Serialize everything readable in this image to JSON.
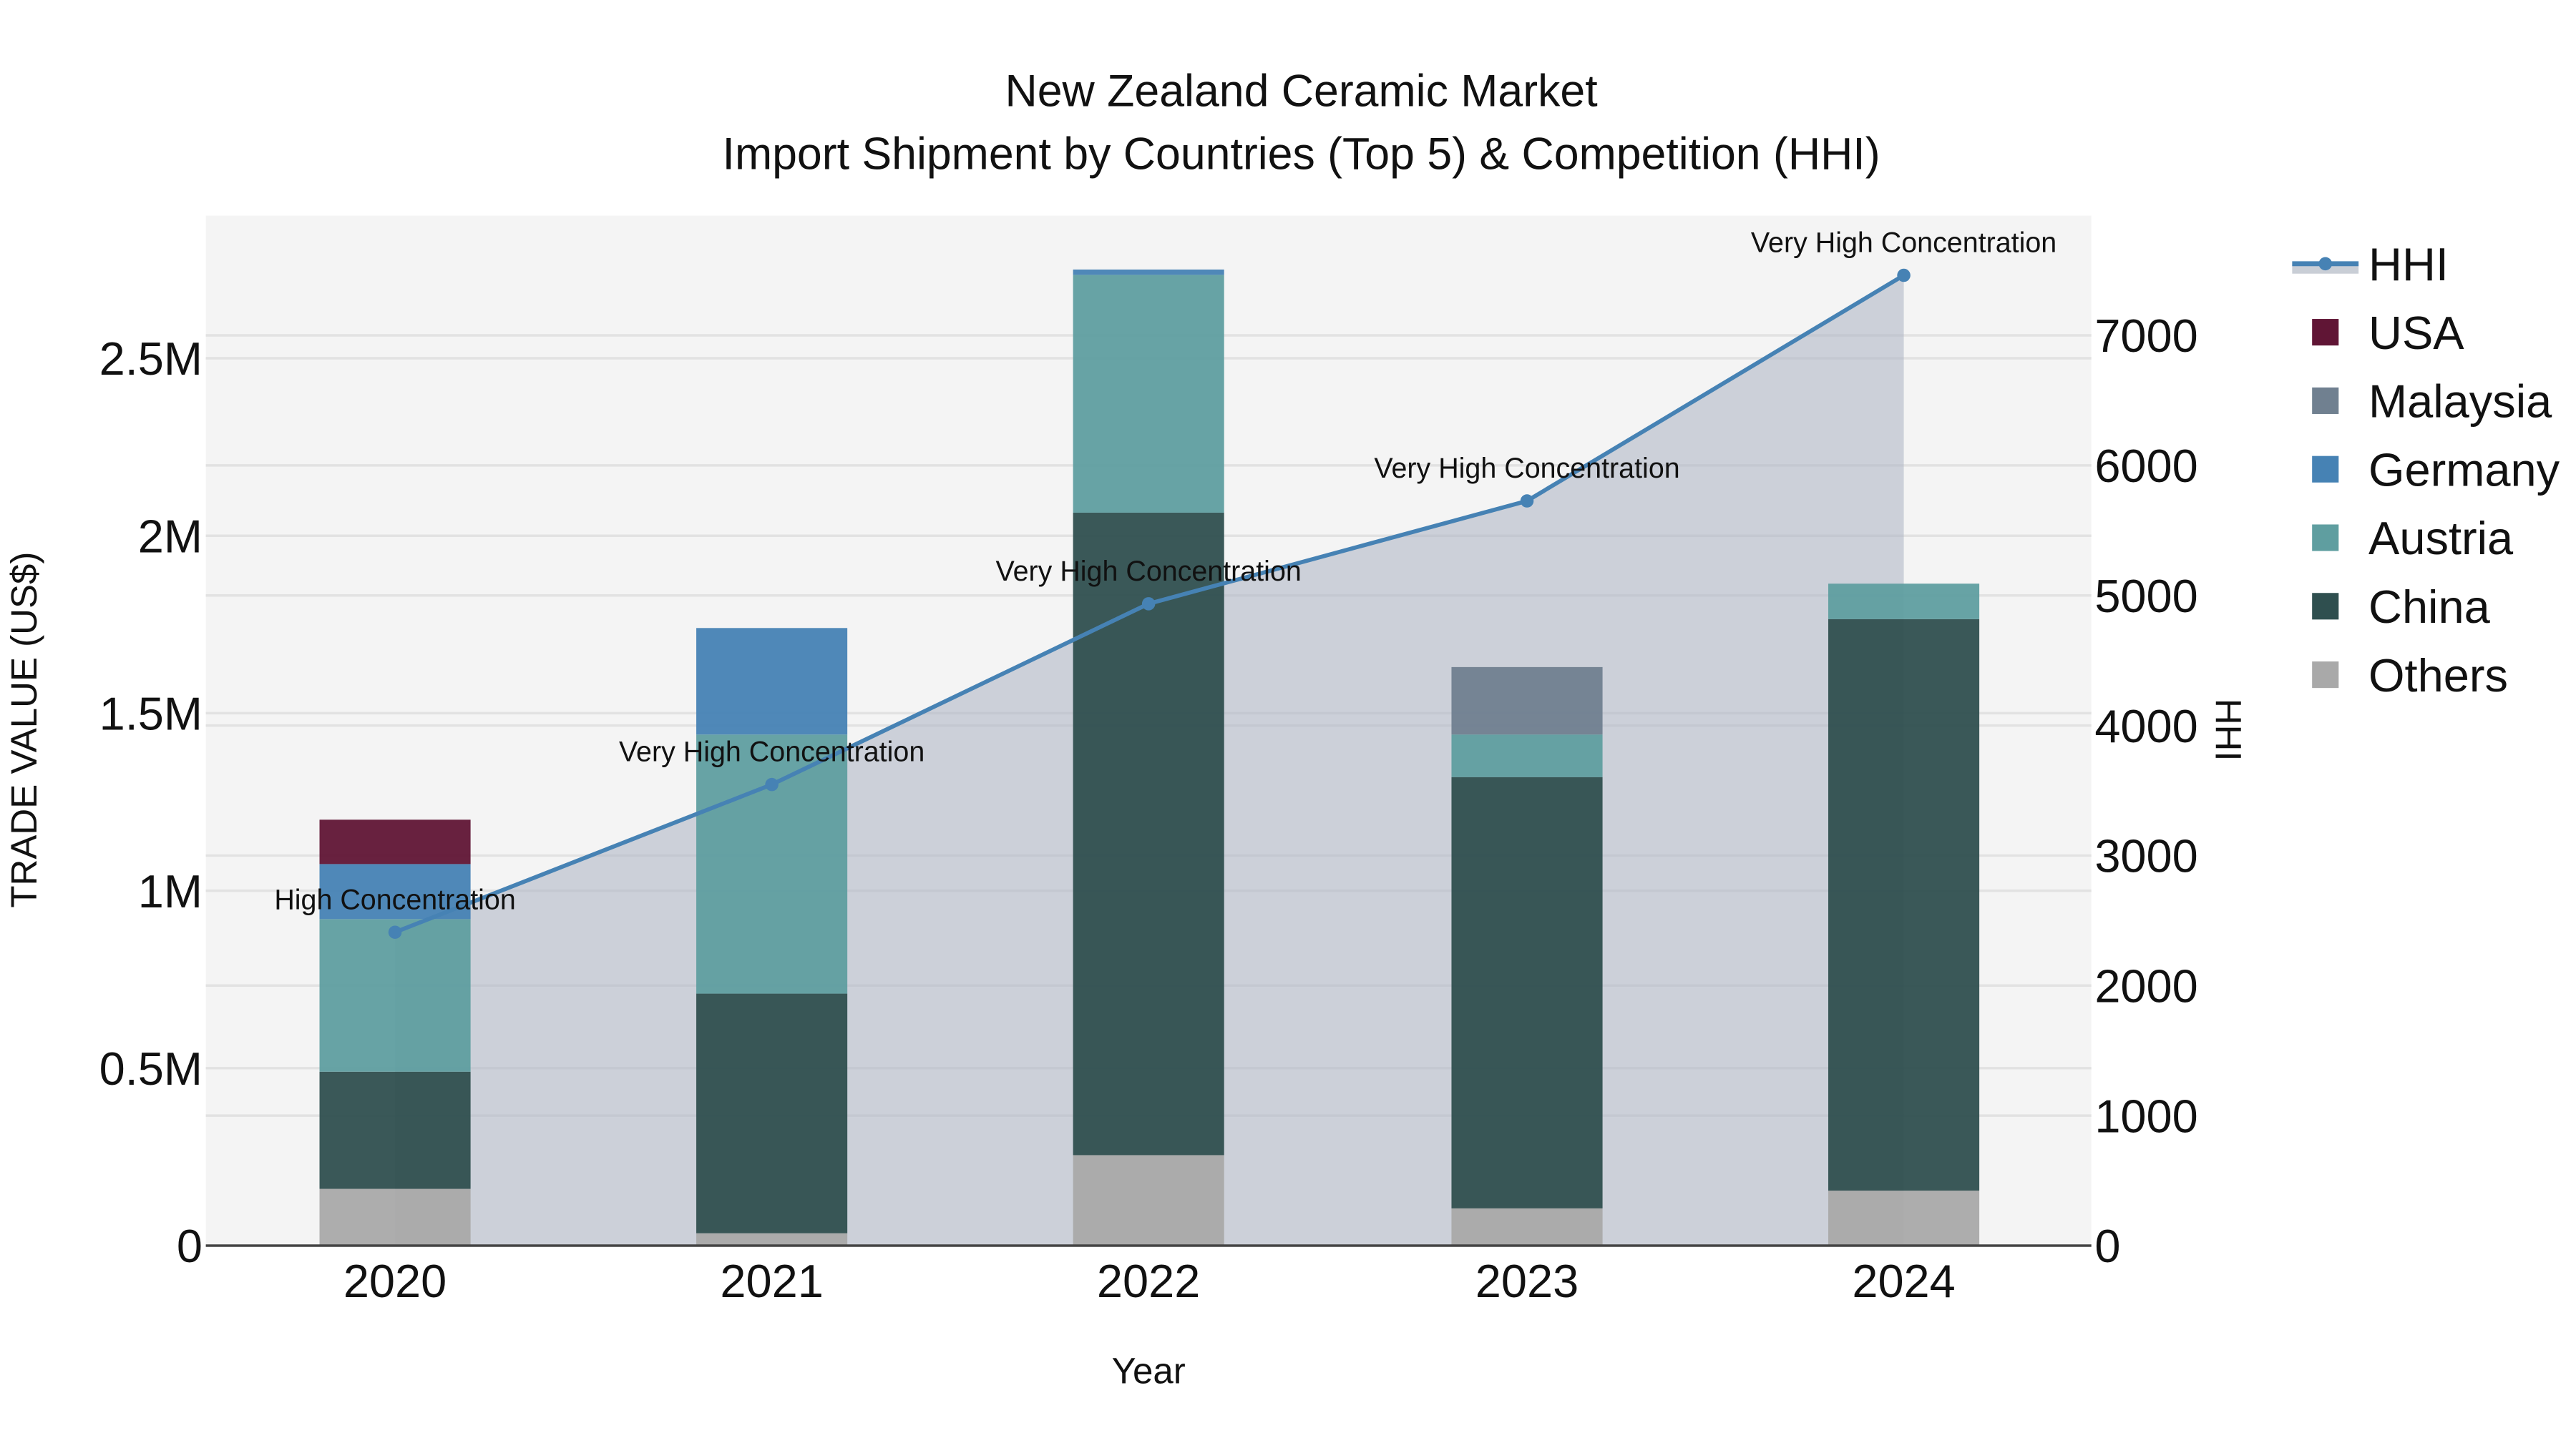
{
  "chart_data": {
    "type": "bar",
    "stacked": true,
    "title": "New Zealand Ceramic Market",
    "subtitle": "Import Shipment by Countries (Top 5) & Competition (HHI)",
    "xlabel": "Year",
    "ylabel": "TRADE VALUE (US$)",
    "y2label": "HHI",
    "categories": [
      "2020",
      "2021",
      "2022",
      "2023",
      "2024"
    ],
    "ylim": [
      0,
      2900000
    ],
    "y2lim": [
      0,
      7900
    ],
    "yticks": [
      {
        "v": 0,
        "label": "0"
      },
      {
        "v": 500000,
        "label": "0.5M"
      },
      {
        "v": 1000000,
        "label": "1M"
      },
      {
        "v": 1500000,
        "label": "1.5M"
      },
      {
        "v": 2000000,
        "label": "2M"
      },
      {
        "v": 2500000,
        "label": "2.5M"
      }
    ],
    "y2ticks": [
      0,
      1000,
      2000,
      3000,
      4000,
      5000,
      6000,
      7000
    ],
    "series": [
      {
        "name": "Others",
        "color": "#a9a9a9",
        "values": [
          160000,
          35000,
          255000,
          105000,
          155000
        ]
      },
      {
        "name": "China",
        "color": "#2f4f4f",
        "values": [
          330000,
          675000,
          1810000,
          1215000,
          1610000
        ]
      },
      {
        "name": "Austria",
        "color": "#5f9ea0",
        "values": [
          430000,
          730000,
          670000,
          120000,
          100000
        ]
      },
      {
        "name": "Germany",
        "color": "#4682b4",
        "values": [
          155000,
          300000,
          15000,
          0,
          0
        ]
      },
      {
        "name": "Malaysia",
        "color": "#708090",
        "values": [
          0,
          0,
          0,
          190000,
          0
        ]
      },
      {
        "name": "USA",
        "color": "#601535",
        "values": [
          125000,
          0,
          0,
          0,
          0
        ]
      }
    ],
    "hhi": {
      "name": "HHI",
      "color": "#4682b4",
      "fill": "rgba(176,184,198,0.6)",
      "values": [
        2410,
        3546,
        4936,
        5727,
        7462
      ],
      "annotations": [
        "High Concentration",
        "Very High Concentration",
        "Very High Concentration",
        "Very High Concentration",
        "Very High Concentration"
      ]
    },
    "legend": [
      "HHI",
      "USA",
      "Malaysia",
      "Germany",
      "Austria",
      "China",
      "Others"
    ],
    "legend_position": "right",
    "grid": true
  }
}
